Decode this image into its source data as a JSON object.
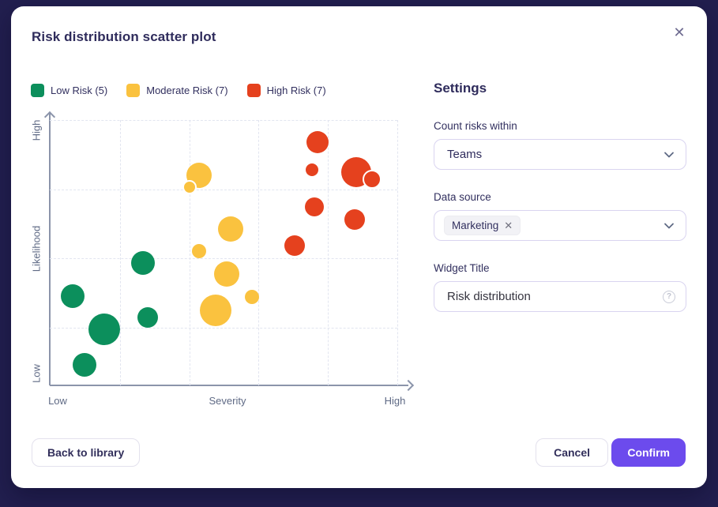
{
  "modal": {
    "title": "Risk distribution scatter plot",
    "close_icon": "✕"
  },
  "legend": [
    {
      "label": "Low Risk (5)",
      "color": "#0C8F5C"
    },
    {
      "label": "Moderate Risk (7)",
      "color": "#FAC23F"
    },
    {
      "label": "High Risk (7)",
      "color": "#E5411E"
    }
  ],
  "chart_data": {
    "type": "scatter",
    "xlabel": "Severity",
    "ylabel": "Likelihood",
    "x_tick_low": "Low",
    "x_tick_high": "High",
    "y_tick_low": "Low",
    "y_tick_high": "High",
    "axis_range": [
      0,
      100
    ],
    "grid": "dashed",
    "grid_x_percents": [
      20.2,
      40.2,
      60,
      80,
      100
    ],
    "grid_y_percents": [
      0,
      26.2,
      52.1,
      78.3
    ],
    "series": [
      {
        "name": "Low Risk",
        "color": "#0C8F5C",
        "points": [
          {
            "severity": 26.8,
            "likelihood": 46.1,
            "r": 15
          },
          {
            "severity": 6.6,
            "likelihood": 33.6,
            "r": 15
          },
          {
            "severity": 15.7,
            "likelihood": 21.1,
            "r": 20
          },
          {
            "severity": 28.2,
            "likelihood": 25.6,
            "r": 13
          },
          {
            "severity": 10.0,
            "likelihood": 7.7,
            "r": 15
          }
        ]
      },
      {
        "name": "Moderate Risk",
        "color": "#FAC23F",
        "points": [
          {
            "severity": 43.0,
            "likelihood": 79.2,
            "r": 16
          },
          {
            "severity": 40.2,
            "likelihood": 74.7,
            "r": 9,
            "ring": true
          },
          {
            "severity": 52.0,
            "likelihood": 58.9,
            "r": 16
          },
          {
            "severity": 43.0,
            "likelihood": 50.6,
            "r": 9
          },
          {
            "severity": 50.9,
            "likelihood": 42.0,
            "r": 16
          },
          {
            "severity": 58.2,
            "likelihood": 33.3,
            "r": 9
          },
          {
            "severity": 47.7,
            "likelihood": 28.3,
            "r": 20
          }
        ]
      },
      {
        "name": "High Risk",
        "color": "#E5411E",
        "points": [
          {
            "severity": 77.0,
            "likelihood": 91.7,
            "r": 14
          },
          {
            "severity": 75.5,
            "likelihood": 81.3,
            "r": 8
          },
          {
            "severity": 88.2,
            "likelihood": 80.4,
            "r": 19
          },
          {
            "severity": 92.7,
            "likelihood": 77.7,
            "r": 12,
            "ring": true
          },
          {
            "severity": 76.1,
            "likelihood": 67.3,
            "r": 12
          },
          {
            "severity": 87.7,
            "likelihood": 62.5,
            "r": 13
          },
          {
            "severity": 70.5,
            "likelihood": 52.7,
            "r": 13
          }
        ]
      }
    ]
  },
  "settings": {
    "heading": "Settings",
    "count_risks": {
      "label": "Count risks within",
      "value": "Teams"
    },
    "data_source": {
      "label": "Data source",
      "chips": [
        {
          "label": "Marketing",
          "remove_icon": "✕"
        }
      ]
    },
    "widget_title": {
      "label": "Widget Title",
      "value": "Risk distribution"
    }
  },
  "footer": {
    "back_label": "Back to library",
    "cancel_label": "Cancel",
    "confirm_label": "Confirm"
  }
}
